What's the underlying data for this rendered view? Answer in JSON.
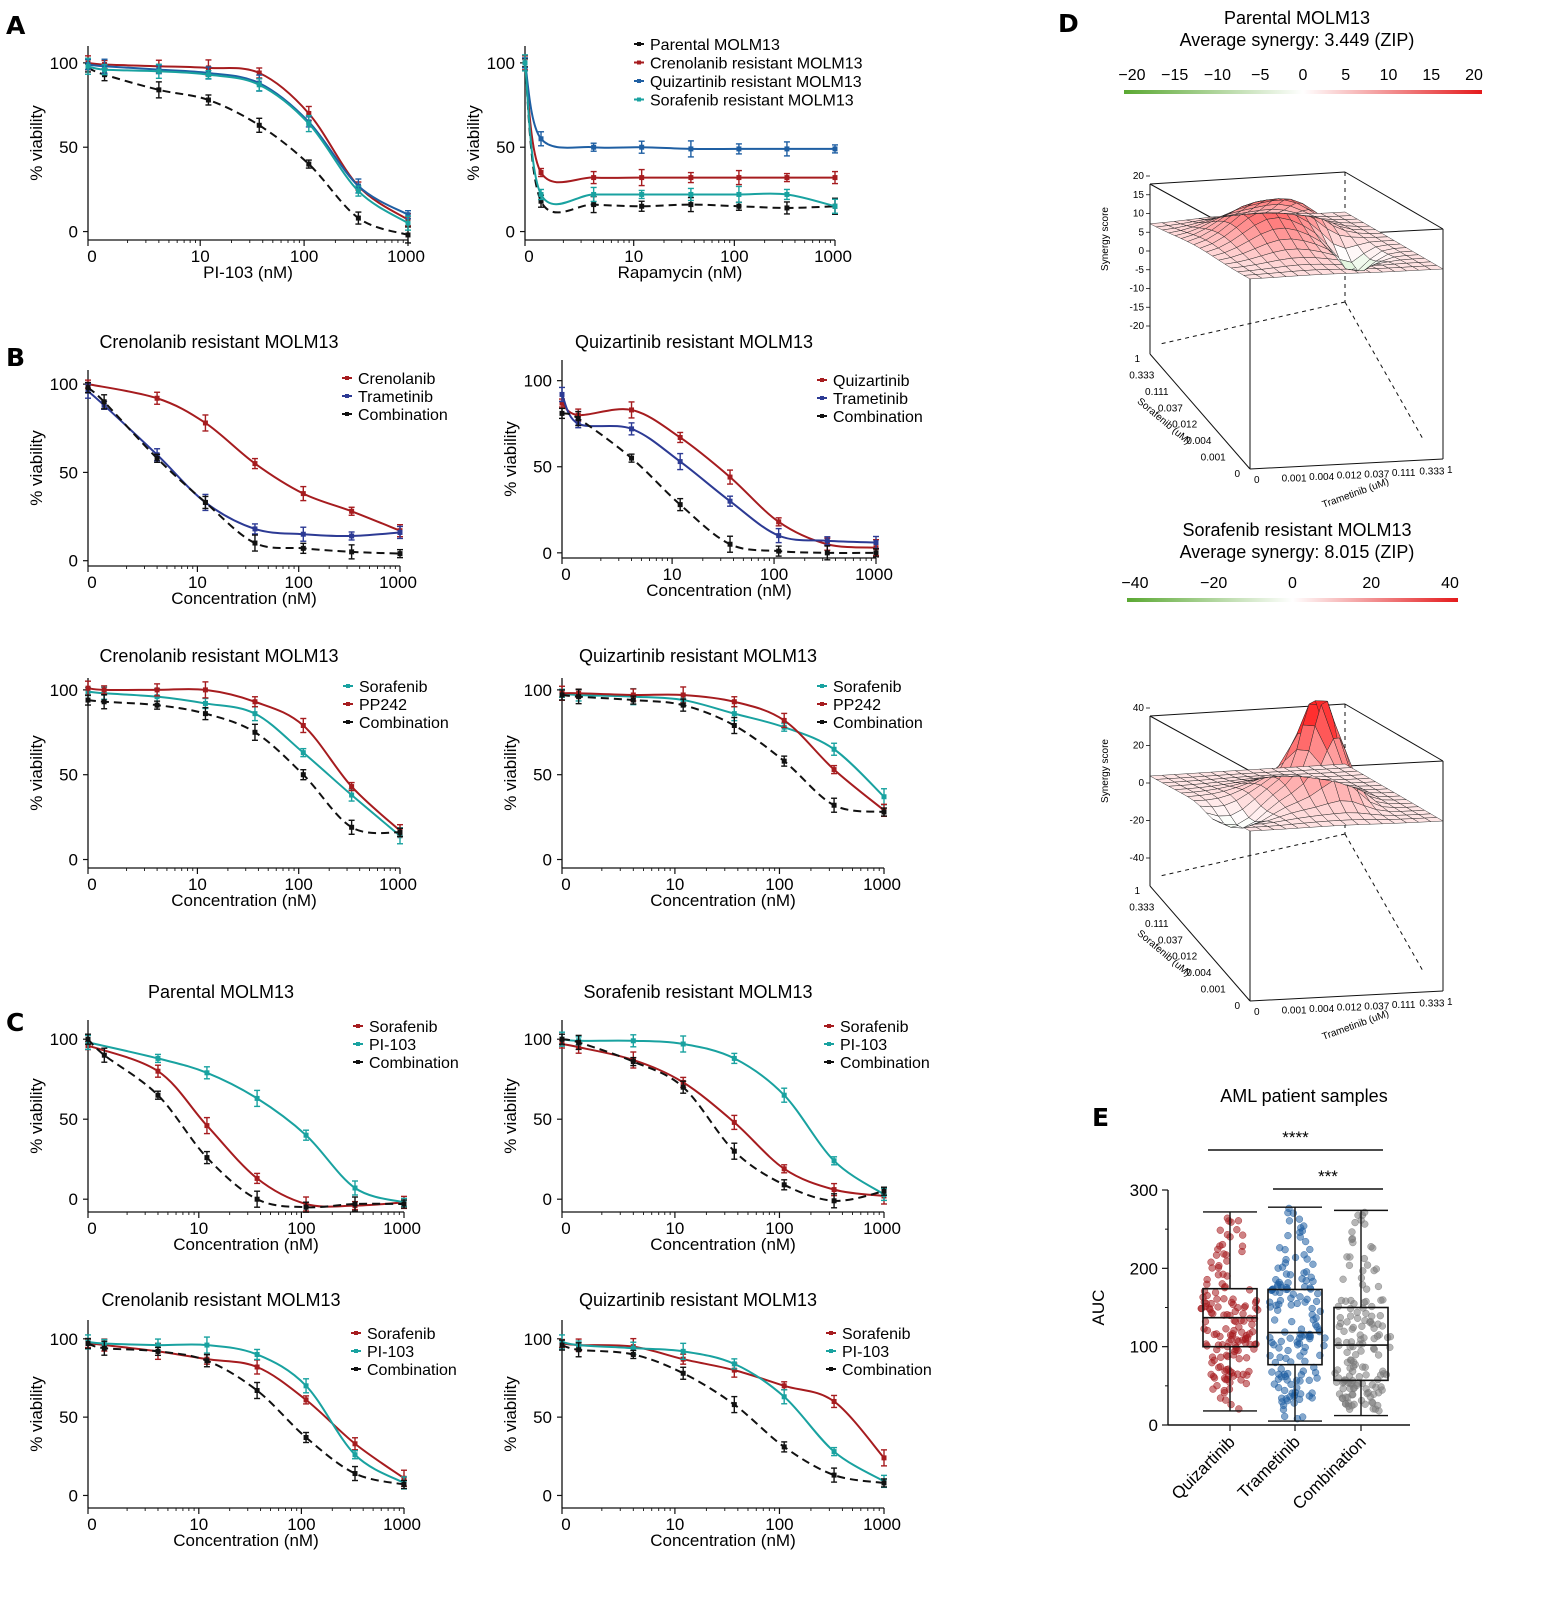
{
  "panels": {
    "A": "A",
    "B": "B",
    "C": "C",
    "D": "D",
    "E": "E"
  },
  "colors": {
    "Parental MOLM13": "#111111",
    "Crenolanib resistant MOLM13": "#a61c1f",
    "Quizartinib resistant MOLM13": "#1f5fa3",
    "Sorafenib resistant MOLM13": "#19a2a0",
    "Crenolanib": "#a61c1f",
    "Quizartinib": "#a61c1f",
    "Sorafenib_red": "#a61c1f",
    "PP242": "#a61c1f",
    "Trametinib": "#2c3a94",
    "Combination": "#111111",
    "Sorafenib_teal": "#19a2a0",
    "PI-103": "#19a2a0"
  },
  "chart_data": [
    {
      "id": "A1",
      "type": "line",
      "xscale": "log",
      "xlabel": "PI-103 (nM)",
      "ylabel": "% viability",
      "title": "",
      "xticks": [
        "0",
        "10",
        "100",
        "1000"
      ],
      "yticks": [
        "0",
        "50",
        "100"
      ],
      "legend": null,
      "series": [
        {
          "name": "Parental MOLM13",
          "x": [
            0,
            1.2,
            4,
            12,
            37,
            111,
            333,
            1000
          ],
          "y": [
            97,
            93,
            84,
            78,
            63,
            40,
            8,
            -2
          ]
        },
        {
          "name": "Crenolanib resistant MOLM13",
          "x": [
            0,
            1.2,
            4,
            12,
            37,
            111,
            333,
            1000
          ],
          "y": [
            100,
            99,
            98,
            97,
            94,
            70,
            27,
            7
          ]
        },
        {
          "name": "Quizartinib resistant MOLM13",
          "x": [
            0,
            1.2,
            4,
            12,
            37,
            111,
            333,
            1000
          ],
          "y": [
            99,
            98,
            96,
            94,
            88,
            65,
            27,
            10
          ]
        },
        {
          "name": "Sorafenib resistant MOLM13",
          "x": [
            0,
            1.2,
            4,
            12,
            37,
            111,
            333,
            1000
          ],
          "y": [
            98,
            96,
            95,
            93,
            87,
            64,
            24,
            5
          ]
        }
      ]
    },
    {
      "id": "A2",
      "type": "line",
      "xscale": "log",
      "xlabel": "Rapamycin (nM)",
      "ylabel": "% viability",
      "title": "",
      "xticks": [
        "0",
        "10",
        "100",
        "1000"
      ],
      "yticks": [
        "0",
        "50",
        "100"
      ],
      "legend": [
        "Parental MOLM13",
        "Crenolanib resistant MOLM13",
        "Quizartinib resistant MOLM13",
        "Sorafenib resistant MOLM13"
      ],
      "series": [
        {
          "name": "Parental MOLM13",
          "x": [
            0,
            1.2,
            4,
            12,
            37,
            111,
            333,
            1000
          ],
          "y": [
            100,
            18,
            16,
            15,
            16,
            15,
            14,
            15
          ]
        },
        {
          "name": "Crenolanib resistant MOLM13",
          "x": [
            0,
            1.2,
            4,
            12,
            37,
            111,
            333,
            1000
          ],
          "y": [
            100,
            35,
            32,
            32,
            32,
            32,
            32,
            32
          ]
        },
        {
          "name": "Quizartinib resistant MOLM13",
          "x": [
            0,
            1.2,
            4,
            12,
            37,
            111,
            333,
            1000
          ],
          "y": [
            100,
            55,
            50,
            50,
            49,
            49,
            49,
            49
          ]
        },
        {
          "name": "Sorafenib resistant MOLM13",
          "x": [
            0,
            1.2,
            4,
            12,
            37,
            111,
            333,
            1000
          ],
          "y": [
            100,
            22,
            22,
            22,
            22,
            22,
            22,
            15
          ]
        }
      ]
    },
    {
      "id": "B1",
      "type": "line",
      "xscale": "log",
      "title": "Crenolanib resistant MOLM13",
      "xlabel": "Concentration (nM)",
      "ylabel": "% viability",
      "xticks": [
        "0",
        "10",
        "100",
        "1000"
      ],
      "yticks": [
        "0",
        "50",
        "100"
      ],
      "legend": [
        "Crenolanib",
        "Trametinib",
        "Combination"
      ],
      "series": [
        {
          "name": "Crenolanib",
          "x": [
            0,
            4,
            12,
            37,
            111,
            333,
            1000
          ],
          "y": [
            100,
            92,
            78,
            55,
            38,
            28,
            17
          ]
        },
        {
          "name": "Trametinib",
          "x": [
            0,
            1.2,
            4,
            12,
            37,
            111,
            333,
            1000
          ],
          "y": [
            96,
            88,
            60,
            33,
            18,
            15,
            14,
            16
          ]
        },
        {
          "name": "Combination",
          "x": [
            0,
            1.2,
            4,
            12,
            37,
            111,
            333,
            1000
          ],
          "y": [
            98,
            90,
            58,
            33,
            10,
            7,
            5,
            4
          ]
        }
      ]
    },
    {
      "id": "B2",
      "type": "line",
      "xscale": "log",
      "title": "Quizartinib resistant MOLM13",
      "xlabel": "Concentration (nM)",
      "ylabel": "% viability",
      "xticks": [
        "0",
        "10",
        "100",
        "1000"
      ],
      "yticks": [
        "0",
        "50",
        "100"
      ],
      "legend": [
        "Quizartinib",
        "Trametinib",
        "Combination"
      ],
      "series": [
        {
          "name": "Quizartinib",
          "x": [
            0,
            1.2,
            4,
            12,
            37,
            111,
            333,
            1000
          ],
          "y": [
            87,
            80,
            83,
            67,
            44,
            18,
            5,
            3
          ]
        },
        {
          "name": "Trametinib",
          "x": [
            0,
            1.2,
            4,
            12,
            37,
            111,
            333,
            1000
          ],
          "y": [
            92,
            75,
            72,
            53,
            30,
            10,
            7,
            6
          ]
        },
        {
          "name": "Combination",
          "x": [
            0,
            1.2,
            4,
            12,
            37,
            111,
            333,
            1000
          ],
          "y": [
            81,
            78,
            55,
            28,
            5,
            1,
            0,
            0
          ]
        }
      ]
    },
    {
      "id": "B3",
      "type": "line",
      "xscale": "log",
      "title": "Crenolanib resistant MOLM13",
      "xlabel": "Concentration (nM)",
      "ylabel": "% viability",
      "xticks": [
        "0",
        "10",
        "100",
        "1000"
      ],
      "yticks": [
        "0",
        "50",
        "100"
      ],
      "legend": [
        "Sorafenib",
        "PP242",
        "Combination"
      ],
      "series": [
        {
          "name": "Sorafenib",
          "x": [
            0,
            1.2,
            4,
            12,
            37,
            111,
            333,
            1000
          ],
          "y": [
            99,
            98,
            96,
            92,
            86,
            63,
            38,
            14
          ]
        },
        {
          "name": "PP242",
          "x": [
            0,
            1.2,
            4,
            12,
            37,
            111,
            333,
            1000
          ],
          "y": [
            101,
            100,
            100,
            100,
            93,
            79,
            43,
            17
          ]
        },
        {
          "name": "Combination",
          "x": [
            0,
            1.2,
            4,
            12,
            37,
            111,
            333,
            1000
          ],
          "y": [
            94,
            93,
            91,
            86,
            75,
            50,
            19,
            16
          ]
        }
      ]
    },
    {
      "id": "B4",
      "type": "line",
      "xscale": "log",
      "title": "Quizartinib resistant MOLM13",
      "xlabel": "Concentration (nM)",
      "ylabel": "% viability",
      "xticks": [
        "0",
        "10",
        "100",
        "1000"
      ],
      "yticks": [
        "0",
        "50",
        "100"
      ],
      "legend": [
        "Sorafenib",
        "PP242",
        "Combination"
      ],
      "series": [
        {
          "name": "Sorafenib",
          "x": [
            0,
            1.2,
            4,
            12,
            37,
            111,
            333,
            1000
          ],
          "y": [
            98,
            97,
            96,
            94,
            86,
            78,
            65,
            37
          ]
        },
        {
          "name": "PP242",
          "x": [
            0,
            1.2,
            4,
            12,
            37,
            111,
            333,
            1000
          ],
          "y": [
            98,
            98,
            97,
            97,
            93,
            82,
            53,
            29
          ]
        },
        {
          "name": "Combination",
          "x": [
            0,
            1.2,
            4,
            12,
            37,
            111,
            333,
            1000
          ],
          "y": [
            97,
            96,
            94,
            91,
            79,
            58,
            32,
            28
          ]
        }
      ]
    },
    {
      "id": "C1",
      "type": "line",
      "xscale": "log",
      "title": "Parental MOLM13",
      "xlabel": "Concentration (nM)",
      "ylabel": "% viability",
      "xticks": [
        "0",
        "10",
        "100",
        "1000"
      ],
      "yticks": [
        "0",
        "50",
        "100"
      ],
      "legend": [
        "Sorafenib",
        "PI-103",
        "Combination"
      ],
      "series": [
        {
          "name": "Sorafenib",
          "x": [
            0,
            4,
            12,
            37,
            111,
            333,
            1000
          ],
          "y": [
            96,
            80,
            46,
            13,
            -3,
            -4,
            -2
          ]
        },
        {
          "name": "PI-103",
          "x": [
            0,
            4,
            12,
            37,
            111,
            333,
            1000
          ],
          "y": [
            98,
            88,
            79,
            63,
            40,
            7,
            -2
          ]
        },
        {
          "name": "Combination",
          "x": [
            0,
            1.2,
            4,
            12,
            37,
            111,
            333,
            1000
          ],
          "y": [
            100,
            90,
            65,
            26,
            0,
            -5,
            -3,
            -3
          ]
        }
      ]
    },
    {
      "id": "C2",
      "type": "line",
      "xscale": "log",
      "title": "Sorafenib resistant MOLM13",
      "xlabel": "Concentration (nM)",
      "ylabel": "% viability",
      "xticks": [
        "0",
        "10",
        "100",
        "1000"
      ],
      "yticks": [
        "0",
        "50",
        "100"
      ],
      "legend": [
        "Sorafenib",
        "PI-103",
        "Combination"
      ],
      "series": [
        {
          "name": "Sorafenib",
          "x": [
            0,
            1.2,
            4,
            12,
            37,
            111,
            333,
            1000
          ],
          "y": [
            97,
            95,
            87,
            73,
            48,
            19,
            6,
            2
          ]
        },
        {
          "name": "PI-103",
          "x": [
            0,
            1.2,
            4,
            12,
            37,
            111,
            333,
            1000
          ],
          "y": [
            100,
            99,
            99,
            97,
            88,
            65,
            24,
            3
          ]
        },
        {
          "name": "Combination",
          "x": [
            0,
            1.2,
            4,
            12,
            37,
            111,
            333,
            1000
          ],
          "y": [
            100,
            98,
            86,
            70,
            30,
            9,
            -1,
            5
          ]
        }
      ]
    },
    {
      "id": "C3",
      "type": "line",
      "xscale": "log",
      "title": "Crenolanib resistant MOLM13",
      "xlabel": "Concentration (nM)",
      "ylabel": "% viability",
      "xticks": [
        "0",
        "10",
        "100",
        "1000"
      ],
      "yticks": [
        "0",
        "50",
        "100"
      ],
      "legend": [
        "Sorafenib",
        "PI-103",
        "Combination"
      ],
      "series": [
        {
          "name": "Sorafenib",
          "x": [
            0,
            1.2,
            4,
            12,
            37,
            111,
            333,
            1000
          ],
          "y": [
            97,
            96,
            92,
            87,
            82,
            61,
            33,
            11
          ]
        },
        {
          "name": "PI-103",
          "x": [
            0,
            1.2,
            4,
            12,
            37,
            111,
            333,
            1000
          ],
          "y": [
            98,
            97,
            96,
            96,
            90,
            70,
            26,
            8
          ]
        },
        {
          "name": "Combination",
          "x": [
            0,
            1.2,
            4,
            12,
            37,
            111,
            333,
            1000
          ],
          "y": [
            97,
            94,
            92,
            86,
            67,
            37,
            14,
            7
          ]
        }
      ]
    },
    {
      "id": "C4",
      "type": "line",
      "xscale": "log",
      "title": "Quizartinib resistant MOLM13",
      "xlabel": "Concentration (nM)",
      "ylabel": "% viability",
      "xticks": [
        "0",
        "10",
        "100",
        "1000"
      ],
      "yticks": [
        "0",
        "50",
        "100"
      ],
      "legend": [
        "Sorafenib",
        "PI-103",
        "Combination"
      ],
      "series": [
        {
          "name": "Sorafenib",
          "x": [
            0,
            1.2,
            4,
            12,
            37,
            111,
            333,
            1000
          ],
          "y": [
            97,
            96,
            95,
            87,
            80,
            70,
            60,
            24
          ]
        },
        {
          "name": "PI-103",
          "x": [
            0,
            1.2,
            4,
            12,
            37,
            111,
            333,
            1000
          ],
          "y": [
            98,
            96,
            94,
            92,
            84,
            63,
            28,
            9
          ]
        },
        {
          "name": "Combination",
          "x": [
            0,
            1.2,
            4,
            12,
            37,
            111,
            333,
            1000
          ],
          "y": [
            96,
            93,
            90,
            78,
            58,
            31,
            13,
            8
          ]
        }
      ]
    },
    {
      "id": "D1",
      "type": "heatmap",
      "title": "Parental MOLM13",
      "subtitle": "Average synergy: 3.449 (ZIP)",
      "colorbar_ticks": [
        "−20",
        "−15",
        "−10",
        "−5",
        "0",
        "5",
        "10",
        "15",
        "20"
      ],
      "zlabel": "Synergy score",
      "zticks": [
        "20",
        "15",
        "10",
        "5",
        "0",
        "-5",
        "-10",
        "-15",
        "-20"
      ],
      "xlabel": "Trametinib (uM)",
      "ylabel": "Sorafenib (uM)",
      "doses": [
        "0",
        "0.001",
        "0.004",
        "0.012",
        "0.037",
        "0.111",
        "0.333",
        "1"
      ]
    },
    {
      "id": "D2",
      "type": "heatmap",
      "title": "Sorafenib resistant MOLM13",
      "subtitle": "Average synergy: 8.015 (ZIP)",
      "colorbar_ticks": [
        "−40",
        "−20",
        "0",
        "20",
        "40"
      ],
      "zlabel": "Synergy score",
      "zticks": [
        "40",
        "20",
        "0",
        "-20",
        "-40"
      ],
      "xlabel": "Trametinib (uM)",
      "ylabel": "Sorafenib (uM)",
      "doses": [
        "0",
        "0.001",
        "0.004",
        "0.012",
        "0.037",
        "0.111",
        "0.333",
        "1"
      ]
    },
    {
      "id": "E",
      "type": "scatter",
      "title": "AML patient samples",
      "ylabel": "AUC",
      "ylim": [
        0,
        300
      ],
      "yticks": [
        "0",
        "100",
        "200",
        "300"
      ],
      "categories": [
        "Quizartinib",
        "Trametinib",
        "Combination"
      ],
      "boxes": [
        {
          "name": "Quizartinib",
          "min": 18,
          "q1": 100,
          "median": 137,
          "q3": 174,
          "max": 272
        },
        {
          "name": "Trametinib",
          "min": 5,
          "q1": 77,
          "median": 118,
          "q3": 173,
          "max": 278
        },
        {
          "name": "Combination",
          "min": 12,
          "q1": 57,
          "median": 102,
          "q3": 150,
          "max": 274
        }
      ],
      "significance": [
        {
          "from": "Quizartinib",
          "to": "Combination",
          "label": "****"
        },
        {
          "from": "Trametinib",
          "to": "Combination",
          "label": "***"
        }
      ]
    }
  ]
}
